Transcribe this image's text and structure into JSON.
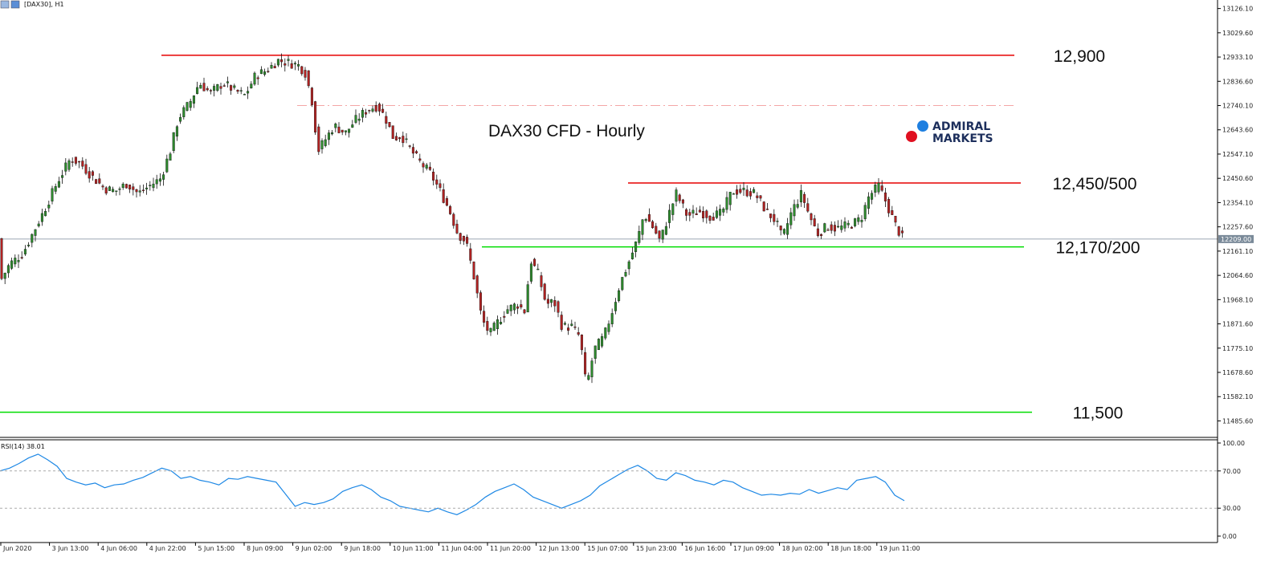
{
  "window": {
    "symbol_label": "[DAX30], H1"
  },
  "chart_data": [
    {
      "type": "candlestick",
      "title": "DAX30 CFD - Hourly",
      "symbol": "[DAX30], H1",
      "ylim": [
        11420,
        13160
      ],
      "y_ticks": [
        "13126.10",
        "13029.60",
        "12933.10",
        "12836.60",
        "12740.10",
        "12643.60",
        "12547.10",
        "12450.60",
        "12354.10",
        "12257.60",
        "12161.10",
        "12064.60",
        "11968.10",
        "11871.60",
        "11775.10",
        "11678.60",
        "11582.10",
        "11485.60"
      ],
      "x_ticks": [
        "Jun 2020",
        "3 Jun 13:00",
        "4 Jun 06:00",
        "4 Jun 22:00",
        "5 Jun 15:00",
        "8 Jun 09:00",
        "9 Jun 02:00",
        "9 Jun 18:00",
        "10 Jun 11:00",
        "11 Jun 04:00",
        "11 Jun 20:00",
        "12 Jun 13:00",
        "15 Jun 07:00",
        "15 Jun 23:00",
        "16 Jun 16:00",
        "17 Jun 09:00",
        "18 Jun 02:00",
        "18 Jun 18:00",
        "19 Jun 11:00"
      ],
      "current_price": "12209.00",
      "path_points": [
        [
          0,
          12040
        ],
        [
          12,
          12110
        ],
        [
          28,
          12150
        ],
        [
          42,
          12240
        ],
        [
          56,
          12330
        ],
        [
          72,
          12440
        ],
        [
          88,
          12530
        ],
        [
          100,
          12510
        ],
        [
          114,
          12460
        ],
        [
          130,
          12410
        ],
        [
          144,
          12400
        ],
        [
          158,
          12430
        ],
        [
          172,
          12390
        ],
        [
          186,
          12420
        ],
        [
          200,
          12450
        ],
        [
          212,
          12560
        ],
        [
          222,
          12690
        ],
        [
          236,
          12750
        ],
        [
          248,
          12830
        ],
        [
          262,
          12790
        ],
        [
          278,
          12830
        ],
        [
          292,
          12800
        ],
        [
          305,
          12780
        ],
        [
          318,
          12860
        ],
        [
          332,
          12880
        ],
        [
          346,
          12920
        ],
        [
          360,
          12910
        ],
        [
          372,
          12900
        ],
        [
          380,
          12870
        ],
        [
          388,
          12770
        ],
        [
          396,
          12560
        ],
        [
          404,
          12600
        ],
        [
          416,
          12660
        ],
        [
          430,
          12630
        ],
        [
          442,
          12680
        ],
        [
          456,
          12720
        ],
        [
          470,
          12740
        ],
        [
          480,
          12690
        ],
        [
          490,
          12610
        ],
        [
          500,
          12620
        ],
        [
          512,
          12560
        ],
        [
          524,
          12510
        ],
        [
          536,
          12470
        ],
        [
          548,
          12400
        ],
        [
          560,
          12320
        ],
        [
          570,
          12230
        ],
        [
          580,
          12200
        ],
        [
          590,
          12060
        ],
        [
          600,
          11890
        ],
        [
          610,
          11830
        ],
        [
          620,
          11880
        ],
        [
          632,
          11930
        ],
        [
          644,
          11950
        ],
        [
          654,
          11920
        ],
        [
          660,
          12130
        ],
        [
          670,
          12070
        ],
        [
          680,
          11950
        ],
        [
          690,
          11960
        ],
        [
          700,
          11860
        ],
        [
          712,
          11860
        ],
        [
          722,
          11820
        ],
        [
          730,
          11620
        ],
        [
          740,
          11770
        ],
        [
          752,
          11820
        ],
        [
          762,
          11920
        ],
        [
          772,
          12030
        ],
        [
          782,
          12110
        ],
        [
          794,
          12210
        ],
        [
          802,
          12310
        ],
        [
          814,
          12250
        ],
        [
          822,
          12200
        ],
        [
          832,
          12300
        ],
        [
          842,
          12390
        ],
        [
          856,
          12300
        ],
        [
          870,
          12320
        ],
        [
          884,
          12300
        ],
        [
          898,
          12310
        ],
        [
          912,
          12400
        ],
        [
          926,
          12400
        ],
        [
          940,
          12390
        ],
        [
          954,
          12320
        ],
        [
          966,
          12280
        ],
        [
          974,
          12210
        ],
        [
          986,
          12320
        ],
        [
          998,
          12390
        ],
        [
          1008,
          12300
        ],
        [
          1018,
          12230
        ],
        [
          1030,
          12260
        ],
        [
          1042,
          12250
        ],
        [
          1052,
          12260
        ],
        [
          1062,
          12270
        ],
        [
          1072,
          12290
        ],
        [
          1082,
          12380
        ],
        [
          1094,
          12420
        ],
        [
          1104,
          12350
        ],
        [
          1114,
          12270
        ],
        [
          1124,
          12210
        ]
      ],
      "levels": [
        {
          "label": "12,900",
          "value": 12940,
          "color": "#e60000",
          "style": "solid"
        },
        {
          "label": "",
          "value": 12740,
          "color": "#f4a6a6",
          "style": "dashdot"
        },
        {
          "label": "12,450/500",
          "value": 12432,
          "color": "#e60000",
          "style": "solid"
        },
        {
          "label": "12,170/200",
          "value": 12178,
          "color": "#00dd00",
          "style": "solid"
        },
        {
          "label": "11,500",
          "value": 11520,
          "color": "#00dd00",
          "style": "solid"
        },
        {
          "label": "",
          "value": 12209,
          "color": "#7a8a99",
          "style": "solid"
        }
      ],
      "colors": {
        "up": "#2e8b2e",
        "down": "#b22222",
        "wick": "#111111",
        "rsi": "#1e88e5"
      }
    },
    {
      "type": "line",
      "title": "RSI(14) 38.01",
      "ylim": [
        0,
        100
      ],
      "y_ticks": [
        "100.00",
        "70.00",
        "30.00",
        "0.00"
      ],
      "guides": [
        70,
        30
      ],
      "series": [
        {
          "values": [
            70,
            73,
            78,
            84,
            88,
            82,
            75,
            62,
            58,
            55,
            57,
            52,
            55,
            56,
            60,
            63,
            68,
            73,
            70,
            62,
            64,
            60,
            58,
            55,
            62,
            61,
            64,
            62,
            60,
            58,
            45,
            32,
            36,
            34,
            36,
            40,
            48,
            52,
            55,
            50,
            42,
            38,
            32,
            30,
            28,
            26,
            30,
            26,
            23,
            28,
            34,
            42,
            48,
            52,
            56,
            50,
            42,
            38,
            34,
            30,
            34,
            38,
            44,
            54,
            60,
            66,
            72,
            76,
            70,
            62,
            60,
            68,
            65,
            60,
            58,
            55,
            60,
            58,
            52,
            48,
            44,
            45,
            44,
            46,
            45,
            50,
            46,
            49,
            52,
            50,
            60,
            62,
            64,
            58,
            44,
            38
          ]
        }
      ]
    }
  ]
}
